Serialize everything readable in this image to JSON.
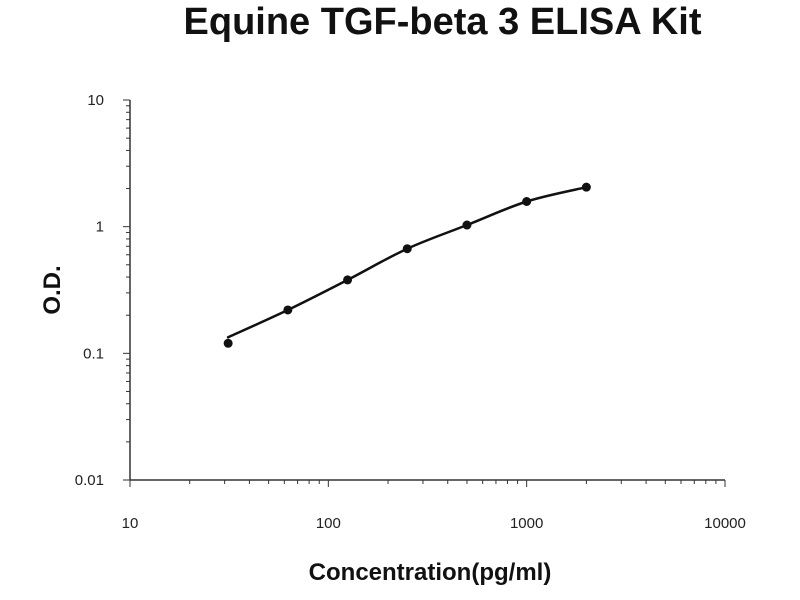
{
  "chart_data": {
    "type": "scatter",
    "title": "Equine TGF-beta 3 ELISA Kit",
    "xlabel": "Concentration(pg/ml)",
    "ylabel": "O.D.",
    "x_scale": "log",
    "y_scale": "log",
    "xlim": [
      10,
      10000
    ],
    "ylim": [
      0.01,
      10
    ],
    "x_ticks": [
      {
        "value": 10,
        "label": "10"
      },
      {
        "value": 100,
        "label": "100"
      },
      {
        "value": 1000,
        "label": "1000"
      },
      {
        "value": 10000,
        "label": "10000"
      }
    ],
    "y_ticks": [
      {
        "value": 10,
        "label": "10"
      },
      {
        "value": 1,
        "label": "1"
      },
      {
        "value": 0.1,
        "label": "0.1"
      },
      {
        "value": 0.01,
        "label": "0.01"
      }
    ],
    "grid": false,
    "legend": "none",
    "series": [
      {
        "x": [
          31.25,
          62.5,
          125,
          250,
          500,
          1000,
          2000
        ],
        "y": [
          0.12,
          0.22,
          0.38,
          0.67,
          1.03,
          1.58,
          2.05
        ],
        "marker": "circle",
        "trendline": "smooth"
      }
    ],
    "colors": {
      "marker": "#111111",
      "line": "#111111",
      "axis": "#333333"
    }
  }
}
